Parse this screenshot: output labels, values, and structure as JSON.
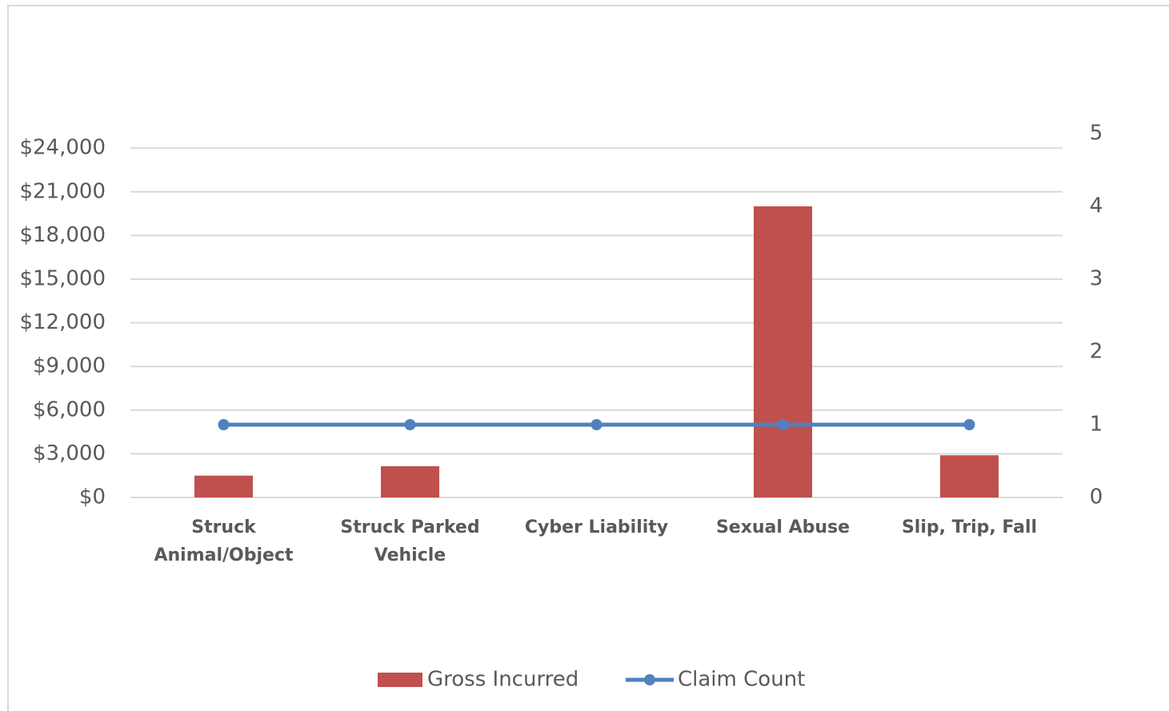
{
  "chart_data": {
    "type": "bar_line",
    "categories": [
      "Struck Animal/Object",
      "Struck Parked Vehicle",
      "Cyber Liability",
      "Sexual Abuse",
      "Slip, Trip, Fall"
    ],
    "series": [
      {
        "name": "Gross Incurred",
        "type": "bar",
        "color": "#c0504d",
        "values": [
          1500,
          2150,
          0,
          20000,
          2900
        ]
      },
      {
        "name": "Claim Count",
        "type": "line",
        "axis": "y2",
        "color": "#4f81bd",
        "values": [
          1,
          1,
          1,
          1,
          1
        ]
      }
    ],
    "ylim": [
      0,
      25000
    ],
    "yticks": [
      {
        "value": 0,
        "label": "$0"
      },
      {
        "value": 3000,
        "label": "$3,000"
      },
      {
        "value": 6000,
        "label": "$6,000"
      },
      {
        "value": 9000,
        "label": "$9,000"
      },
      {
        "value": 12000,
        "label": "$12,000"
      },
      {
        "value": 15000,
        "label": "$15,000"
      },
      {
        "value": 18000,
        "label": "$18,000"
      },
      {
        "value": 21000,
        "label": "$21,000"
      },
      {
        "value": 24000,
        "label": "$24,000"
      }
    ],
    "y2lim": [
      0,
      5
    ],
    "y2ticks": [
      0,
      1,
      2,
      3,
      4,
      5
    ],
    "grid": true,
    "legend": "bottom"
  }
}
